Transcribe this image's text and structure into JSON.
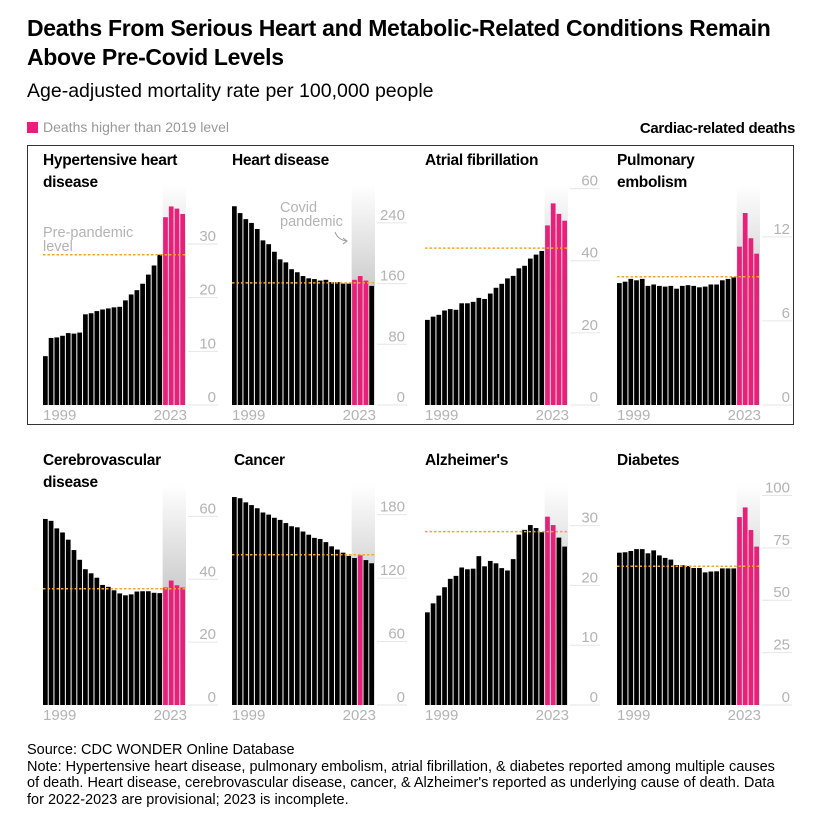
{
  "title": "Deaths From Serious Heart and Metabolic-Related Conditions Remain Above Pre-Covid Levels",
  "subtitle": "Age-adjusted mortality rate per 100,000 people",
  "legend": {
    "label": "Deaths higher than 2019 level",
    "color": "#e8207a"
  },
  "group_label": "Cardiac-related deaths",
  "colors": {
    "bar": "#000000",
    "highlight": "#e8207a",
    "prepandemic_line": "#f5a623",
    "tick_text": "#b3b3b3"
  },
  "annotations": {
    "prepandemic": "Pre-pandemic level",
    "covid": "Covid pandemic"
  },
  "footer": {
    "source": "Source: CDC WONDER Online Database",
    "note": "Note: Hypertensive heart disease, pulmonary embolism, atrial fibrillation, & diabetes reported among multiple causes of death. Heart disease, cerebrovascular disease, cancer, & Alzheimer's reported as underlying cause of death. Data for 2022-2023 are provisional; 2023 is incomplete."
  },
  "chart_data": [
    {
      "type": "bar",
      "title": "Hypertensive heart disease",
      "x_start_label": "1999",
      "x_end_label": "2023",
      "years": [
        1999,
        2023
      ],
      "ylim": [
        0,
        41
      ],
      "yticks": [
        0,
        10,
        20,
        30
      ],
      "prepandemic_level": 28,
      "values": [
        9.1,
        12.5,
        12.6,
        12.9,
        13.4,
        13.3,
        13.5,
        16.9,
        17.1,
        17.5,
        17.8,
        18.0,
        18.2,
        18.3,
        19.5,
        20.6,
        21.4,
        22.6,
        24.3,
        26.0,
        28.0,
        35.0,
        37.0,
        36.6,
        35.6
      ],
      "highlighted_years": [
        2020,
        2021,
        2022,
        2023
      ]
    },
    {
      "type": "bar",
      "title": "Heart disease",
      "x_start_label": "1999",
      "x_end_label": "2023",
      "years": [
        1999,
        2023
      ],
      "ylim": [
        0,
        290
      ],
      "yticks": [
        0,
        80,
        160,
        240
      ],
      "prepandemic_level": 161,
      "values": [
        262,
        253,
        245,
        240,
        232,
        217,
        212,
        202,
        192,
        188,
        179,
        175,
        170,
        167,
        166,
        164,
        165,
        162,
        162,
        160,
        160,
        165,
        170,
        164,
        157
      ],
      "highlighted_years": [
        2020,
        2021,
        2022
      ]
    },
    {
      "type": "bar",
      "title": "Atrial fibrillation",
      "x_start_label": "1999",
      "x_end_label": "2023",
      "years": [
        1999,
        2023
      ],
      "ylim": [
        0,
        61
      ],
      "yticks": [
        0,
        20,
        40,
        60
      ],
      "prepandemic_level": 43.5,
      "values": [
        23.6,
        24.5,
        25.0,
        26.2,
        26.6,
        26.4,
        28.2,
        28.2,
        28.6,
        29.7,
        29.4,
        30.9,
        32.5,
        33.6,
        35.1,
        35.8,
        37.9,
        38.6,
        40.6,
        41.7,
        42.7,
        49.8,
        55.9,
        53.0,
        51.1
      ],
      "highlighted_years": [
        2020,
        2021,
        2022,
        2023
      ]
    },
    {
      "type": "bar",
      "title": "Pulmonary embolism",
      "x_start_label": "1999",
      "x_end_label": "2023",
      "years": [
        1999,
        2023
      ],
      "ylim": [
        0,
        15.7
      ],
      "yticks": [
        0,
        6,
        12
      ],
      "prepandemic_level": 9.15,
      "values": [
        8.7,
        8.8,
        9.0,
        8.9,
        9.0,
        8.5,
        8.6,
        8.5,
        8.45,
        8.5,
        8.3,
        8.5,
        8.55,
        8.5,
        8.4,
        8.45,
        8.6,
        8.6,
        8.9,
        9.0,
        9.1,
        11.3,
        13.7,
        11.9,
        10.8
      ],
      "highlighted_years": [
        2020,
        2021,
        2022,
        2023
      ]
    },
    {
      "type": "bar",
      "title": "Cerebrovascular disease",
      "x_start_label": "1999",
      "x_end_label": "2023",
      "years": [
        1999,
        2023
      ],
      "ylim": [
        0,
        70
      ],
      "yticks": [
        0,
        20,
        40,
        60
      ],
      "prepandemic_level": 37,
      "values": [
        59.2,
        58.6,
        56.2,
        54.9,
        52.6,
        49.3,
        46.2,
        43.2,
        41.9,
        40.5,
        38.2,
        37.6,
        36.5,
        35.5,
        34.9,
        35.2,
        36.1,
        36.2,
        36.2,
        35.7,
        35.6,
        37.4,
        39.6,
        38.1,
        37.4
      ],
      "highlighted_years": [
        2020,
        2021,
        2022,
        2023
      ]
    },
    {
      "type": "bar",
      "title": "Cancer",
      "x_start_label": "1999",
      "x_end_label": "2023",
      "years": [
        1999,
        2023
      ],
      "ylim": [
        0,
        208
      ],
      "yticks": [
        0,
        60,
        120,
        180
      ],
      "prepandemic_level": 142,
      "values": [
        196.6,
        195.5,
        191.6,
        189,
        186,
        182,
        180,
        177,
        175,
        172,
        169,
        168,
        164,
        161,
        158,
        157,
        154,
        150,
        147,
        144,
        141,
        139,
        141.5,
        137,
        134
      ],
      "highlighted_years": [
        2021
      ]
    },
    {
      "type": "bar",
      "title": "Alzheimer's",
      "x_start_label": "1999",
      "x_end_label": "2023",
      "years": [
        1999,
        2023
      ],
      "ylim": [
        0,
        36.8
      ],
      "yticks": [
        0,
        10,
        20,
        30
      ],
      "prepandemic_level": 29,
      "values": [
        15.5,
        17.0,
        18.3,
        19.7,
        21.1,
        21.6,
        23.0,
        22.7,
        22.8,
        24.9,
        23.2,
        24.1,
        23.7,
        22.9,
        22.5,
        24.4,
        28.5,
        29.3,
        30.1,
        29.6,
        28.9,
        31.5,
        30.1,
        28.0,
        26.5
      ],
      "highlighted_years": [
        2020,
        2021
      ]
    },
    {
      "type": "bar",
      "title": "Diabetes",
      "x_start_label": "1999",
      "x_end_label": "2023",
      "years": [
        1999,
        2023
      ],
      "ylim": [
        0,
        105
      ],
      "yticks": [
        0,
        25,
        50,
        75,
        100
      ],
      "prepandemic_level": 66.2,
      "values": [
        72.7,
        72.9,
        73.5,
        74.4,
        74.4,
        72.4,
        73.8,
        71.4,
        70.2,
        69.4,
        66.8,
        66.7,
        66.3,
        65.4,
        65.4,
        63.3,
        63.7,
        63.8,
        65.2,
        65.2,
        65.2,
        89.7,
        94.3,
        83.5,
        75.6
      ],
      "highlighted_years": [
        2020,
        2021,
        2022,
        2023
      ]
    }
  ]
}
